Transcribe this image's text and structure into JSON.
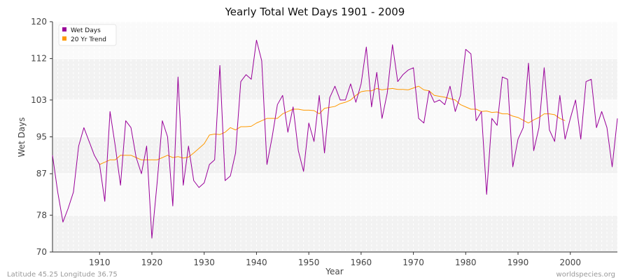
{
  "chart_data": {
    "type": "line",
    "title": "Yearly Total Wet Days 1901 - 2009",
    "xlabel": "Year",
    "ylabel": "Wet Days",
    "xlim": [
      1901,
      2009
    ],
    "ylim": [
      70,
      120
    ],
    "yticks": [
      "70",
      "78",
      "87",
      "95",
      "103",
      "112",
      "120"
    ],
    "ytick_values": [
      70,
      78,
      87,
      95,
      103,
      112,
      120
    ],
    "xticks": [
      "1910",
      "1920",
      "1930",
      "1940",
      "1950",
      "1960",
      "1970",
      "1980",
      "1990",
      "2000"
    ],
    "xtick_values": [
      1910,
      1920,
      1930,
      1940,
      1950,
      1960,
      1970,
      1980,
      1990,
      2000
    ],
    "grid": true,
    "legend_position": "top-left",
    "series": [
      {
        "name": "Wet Days",
        "color": "#990099",
        "x": [
          1901,
          1902,
          1903,
          1904,
          1905,
          1906,
          1907,
          1908,
          1909,
          1910,
          1911,
          1912,
          1913,
          1914,
          1915,
          1916,
          1917,
          1918,
          1919,
          1920,
          1921,
          1922,
          1923,
          1924,
          1925,
          1926,
          1927,
          1928,
          1929,
          1930,
          1931,
          1932,
          1933,
          1934,
          1935,
          1936,
          1937,
          1938,
          1939,
          1940,
          1941,
          1942,
          1943,
          1944,
          1945,
          1946,
          1947,
          1948,
          1949,
          1950,
          1951,
          1952,
          1953,
          1954,
          1955,
          1956,
          1957,
          1958,
          1959,
          1960,
          1961,
          1962,
          1963,
          1964,
          1965,
          1966,
          1967,
          1968,
          1969,
          1970,
          1971,
          1972,
          1973,
          1974,
          1975,
          1976,
          1977,
          1978,
          1979,
          1980,
          1981,
          1982,
          1983,
          1984,
          1985,
          1986,
          1987,
          1988,
          1989,
          1990,
          1991,
          1992,
          1993,
          1994,
          1995,
          1996,
          1997,
          1998,
          1999,
          2000,
          2001,
          2002,
          2003,
          2004,
          2005,
          2006,
          2007,
          2008,
          2009
        ],
        "values": [
          91,
          83,
          76.5,
          79.5,
          83,
          93,
          97,
          94,
          91,
          89,
          81,
          100.5,
          93,
          84.5,
          98.5,
          97,
          90.5,
          87,
          93,
          73,
          85,
          98.5,
          95,
          80,
          108,
          84.5,
          93,
          85.5,
          84,
          85,
          89,
          90,
          110.5,
          85.5,
          86.5,
          91.5,
          107,
          108.5,
          107.5,
          116,
          111.5,
          89,
          95,
          102,
          104,
          96,
          101.5,
          92,
          87.5,
          98,
          94,
          104,
          91.5,
          103.5,
          106,
          103,
          103,
          106.5,
          102.5,
          106.5,
          114.5,
          101.5,
          109,
          99,
          104.5,
          115,
          107,
          108.5,
          109.5,
          110,
          99,
          98,
          105,
          102.5,
          103,
          102,
          106,
          100.5,
          104,
          114,
          113,
          98.5,
          100.5,
          82.5,
          99,
          97.5,
          108,
          107.5,
          88.5,
          94.5,
          97,
          111,
          92,
          97,
          110,
          96.5,
          94,
          104,
          94.5,
          99,
          103,
          94.5,
          107,
          107.5,
          97,
          100.5,
          97,
          88.5,
          99
        ]
      },
      {
        "name": "20 Yr Trend",
        "color": "#ff9900",
        "x": [
          1910,
          1911,
          1912,
          1913,
          1914,
          1915,
          1916,
          1917,
          1918,
          1919,
          1920,
          1921,
          1922,
          1923,
          1924,
          1925,
          1926,
          1927,
          1928,
          1929,
          1930,
          1931,
          1932,
          1933,
          1934,
          1935,
          1936,
          1937,
          1938,
          1939,
          1940,
          1941,
          1942,
          1943,
          1944,
          1945,
          1946,
          1947,
          1948,
          1949,
          1950,
          1951,
          1952,
          1953,
          1954,
          1955,
          1956,
          1957,
          1958,
          1959,
          1960,
          1961,
          1962,
          1963,
          1964,
          1965,
          1966,
          1967,
          1968,
          1969,
          1970,
          1971,
          1972,
          1973,
          1974,
          1975,
          1976,
          1977,
          1978,
          1979,
          1980,
          1981,
          1982,
          1983,
          1984,
          1985,
          1986,
          1987,
          1988,
          1989,
          1990,
          1991,
          1992,
          1993,
          1994,
          1995,
          1996,
          1997,
          1998,
          1999
        ],
        "values": [
          89,
          89.5,
          90,
          90,
          91,
          91,
          91,
          90.5,
          90,
          90,
          90,
          90,
          90.5,
          91,
          90.5,
          90.7,
          90.4,
          90.6,
          91.5,
          92.5,
          93.5,
          95.4,
          95.6,
          95.5,
          96,
          97,
          96.5,
          97.2,
          97.2,
          97.3,
          98,
          98.5,
          99,
          99,
          99,
          100,
          100.5,
          101,
          101,
          100.8,
          100.8,
          100.7,
          100,
          101.2,
          101.4,
          101.6,
          102.2,
          102.5,
          103,
          104,
          104.8,
          105,
          105,
          105.5,
          105.2,
          105.4,
          105.5,
          105.3,
          105.3,
          105.2,
          105.6,
          106,
          105.2,
          105,
          104,
          103.8,
          103.6,
          103.3,
          103,
          102,
          101.5,
          101,
          101,
          100.5,
          100.6,
          100.3,
          100.4,
          100,
          100,
          99.5,
          99.2,
          98.6,
          98,
          98.7,
          99.2,
          100,
          100,
          99.8,
          99,
          98.5
        ]
      }
    ]
  },
  "footer": {
    "left": "Latitude 45.25 Longitude 36.75",
    "right": "worldspecies.org"
  }
}
